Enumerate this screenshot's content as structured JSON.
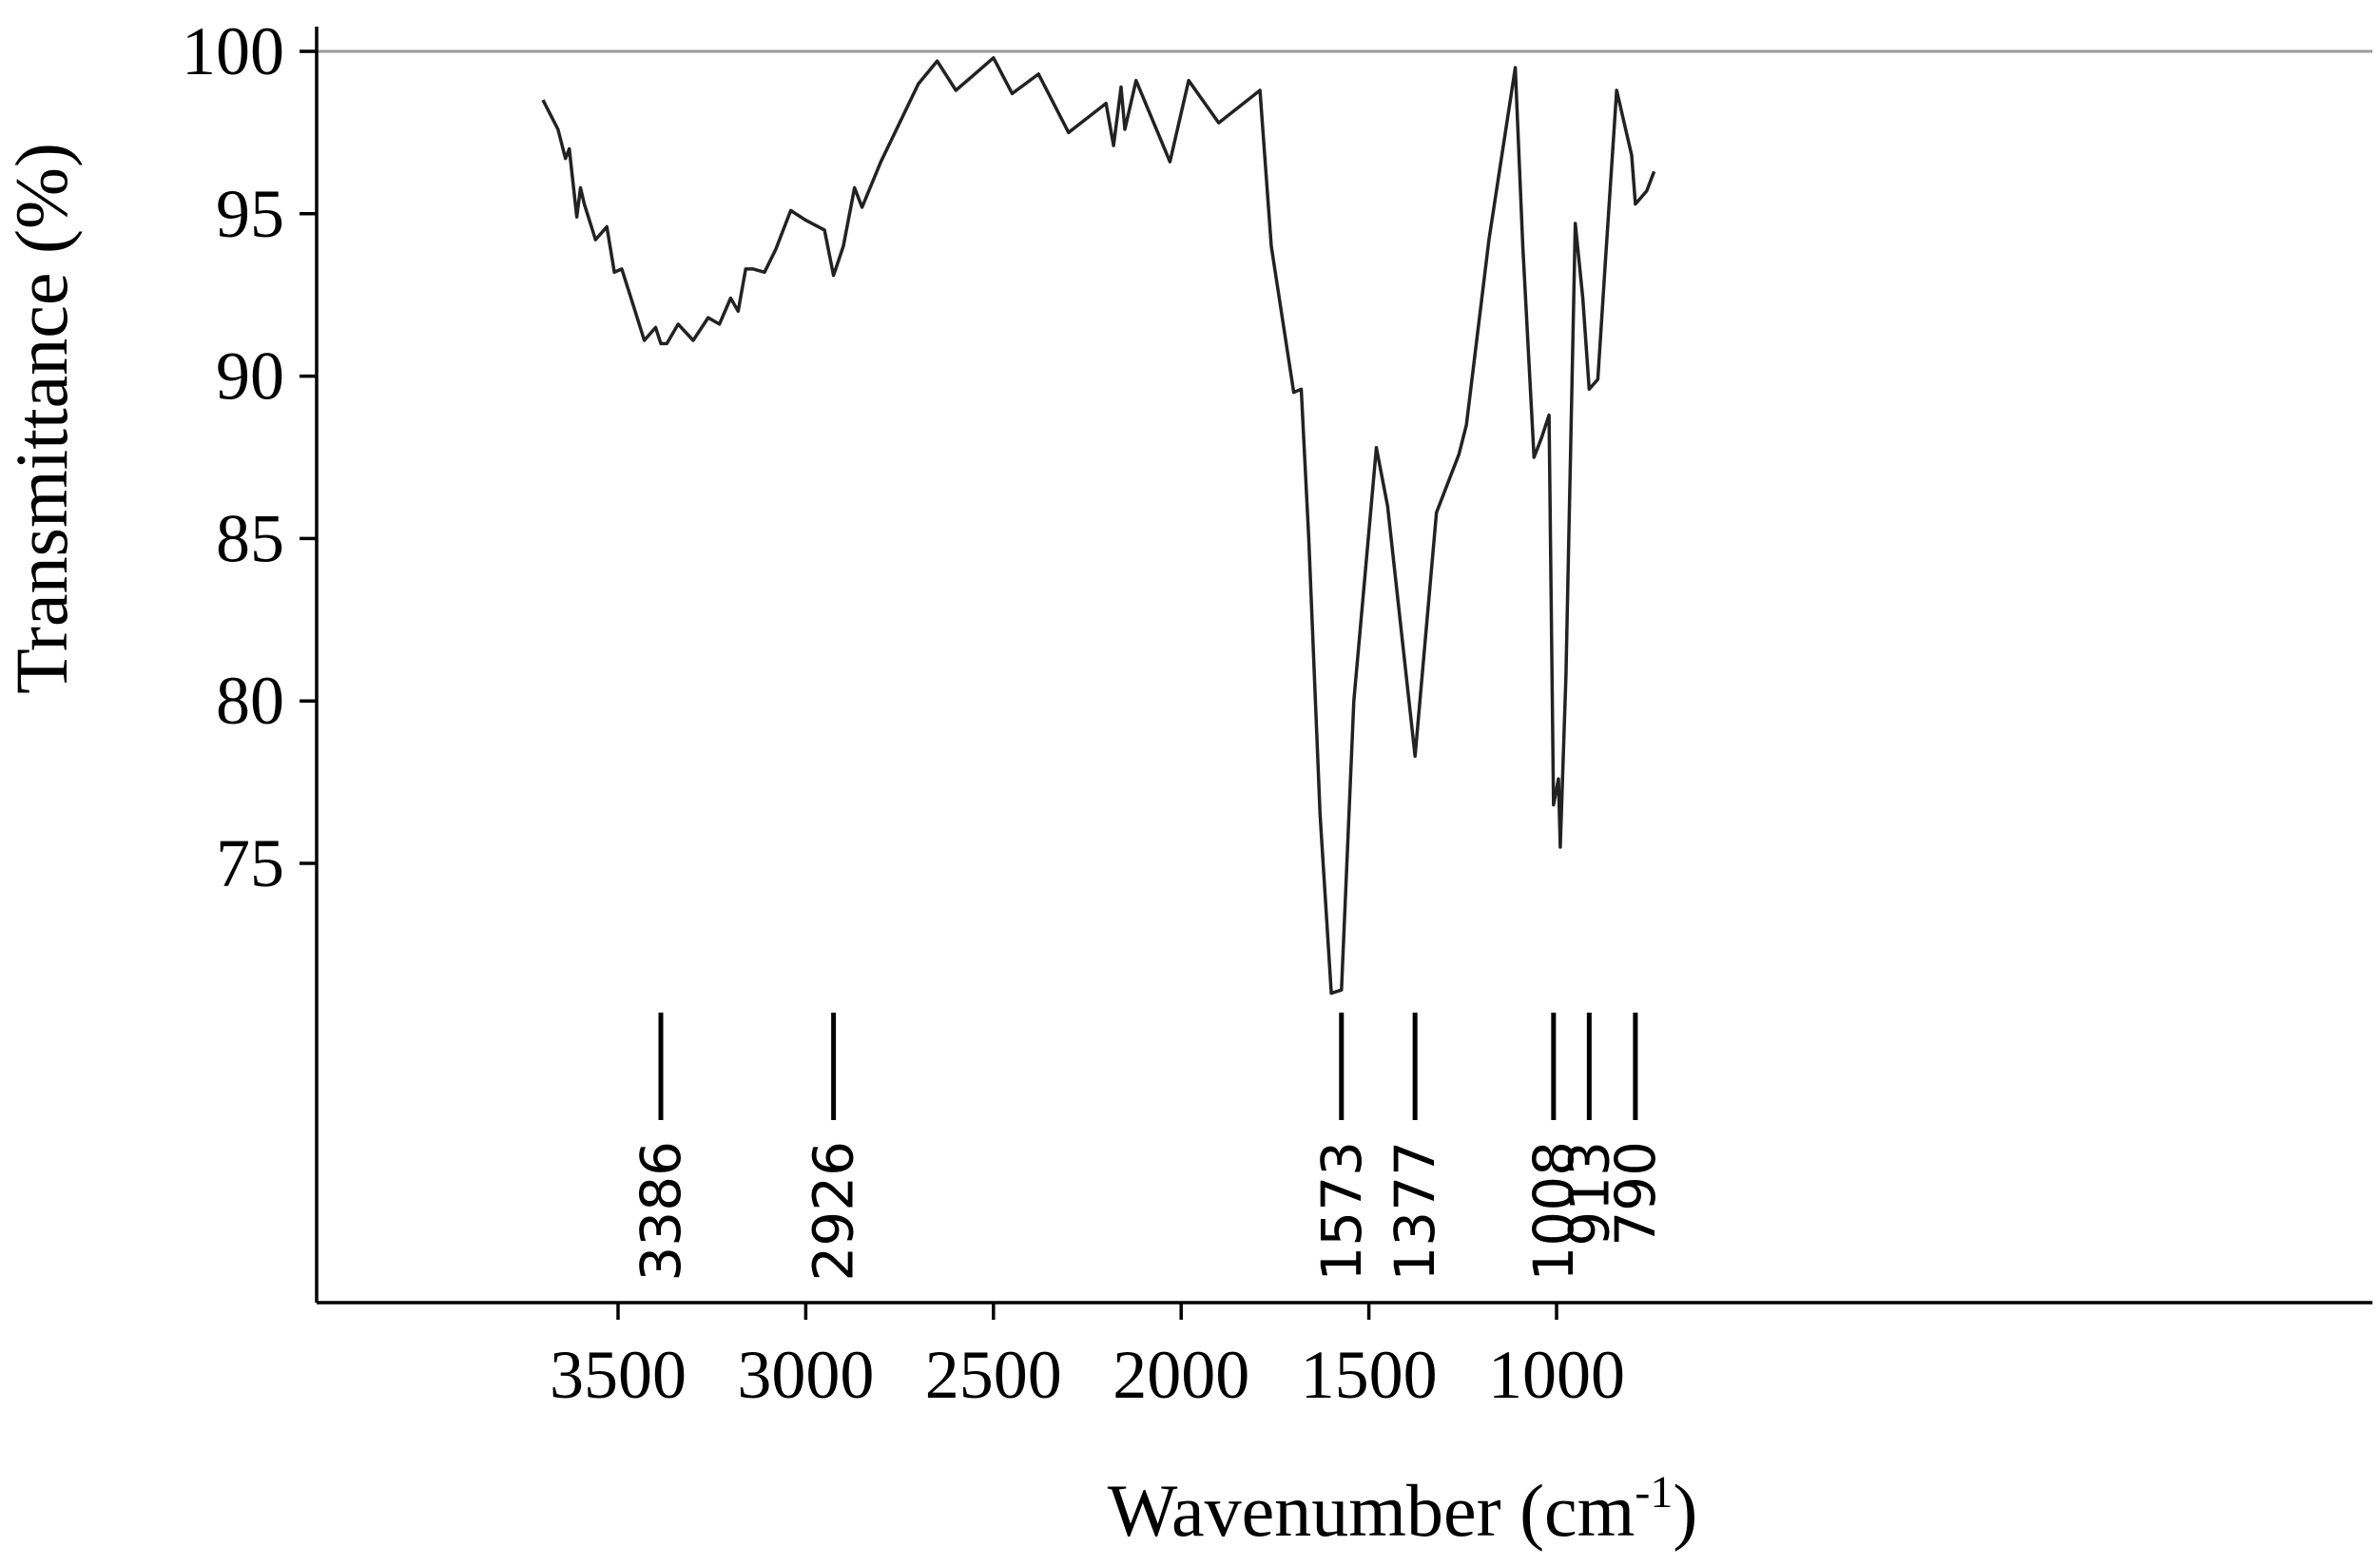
{
  "chart_data": {
    "type": "line",
    "xlabel": "Wavenumber (cm",
    "xlabel_sup": "-1",
    "xlabel_close": ")",
    "ylabel": "Transmittance (%)",
    "x_reversed": true,
    "xlim": [
      3940,
      650
    ],
    "ylim": [
      67,
      101
    ],
    "xticks": [
      3500,
      3000,
      2500,
      2000,
      1500,
      1000
    ],
    "yticks": [
      75,
      80,
      85,
      90,
      95,
      100
    ],
    "reference_line": 100,
    "series": [
      {
        "x": [
          3700,
          3660,
          3640,
          3630,
          3610,
          3600,
          3590,
          3560,
          3530,
          3510,
          3490,
          3460,
          3430,
          3400,
          3386,
          3370,
          3340,
          3300,
          3260,
          3230,
          3200,
          3180,
          3160,
          3140,
          3110,
          3080,
          3040,
          3000,
          2950,
          2926,
          2900,
          2870,
          2850,
          2800,
          2750,
          2700,
          2650,
          2600,
          2550,
          2500,
          2450,
          2380,
          2300,
          2200,
          2180,
          2160,
          2150,
          2120,
          2030,
          1980,
          1900,
          1790,
          1760,
          1700,
          1680,
          1660,
          1630,
          1600,
          1573,
          1540,
          1480,
          1450,
          1377,
          1320,
          1260,
          1240,
          1180,
          1110,
          1090,
          1060,
          1040,
          1020,
          1008,
          995,
          990,
          975,
          950,
          930,
          913,
          890,
          870,
          840,
          800,
          790,
          760,
          740
        ],
        "y": [
          98.5,
          97.6,
          96.7,
          97,
          94.9,
          95.8,
          95.3,
          94.2,
          94.6,
          93.2,
          93.3,
          92.2,
          91.1,
          91.5,
          91,
          91,
          91.6,
          91.1,
          91.8,
          91.6,
          92.4,
          92,
          93.3,
          93.3,
          93.2,
          93.9,
          95.1,
          94.8,
          94.5,
          93.1,
          94,
          95.8,
          95.2,
          96.6,
          97.8,
          99,
          99.7,
          98.8,
          99.3,
          99.8,
          98.7,
          99.3,
          97.5,
          98.4,
          97.1,
          98.9,
          97.6,
          99.1,
          96.6,
          99.1,
          97.8,
          98.8,
          94,
          89.5,
          89.6,
          85,
          76.5,
          71,
          71.1,
          80,
          87.8,
          86,
          78.3,
          85.8,
          87.6,
          88.5,
          94.2,
          99.5,
          94,
          87.5,
          88.1,
          88.8,
          76.8,
          77.6,
          75.5,
          80.8,
          94.7,
          92.4,
          89.6,
          89.9,
          93.5,
          98.8,
          96.8,
          95.3,
          95.7,
          96.3
        ]
      }
    ],
    "peaks": [
      {
        "x": 3386,
        "label": "3386"
      },
      {
        "x": 2926,
        "label": "2926"
      },
      {
        "x": 1573,
        "label": "1573"
      },
      {
        "x": 1377,
        "label": "1377"
      },
      {
        "x": 1008,
        "label": "1008"
      },
      {
        "x": 913,
        "label": "913"
      },
      {
        "x": 790,
        "label": "790"
      }
    ]
  }
}
